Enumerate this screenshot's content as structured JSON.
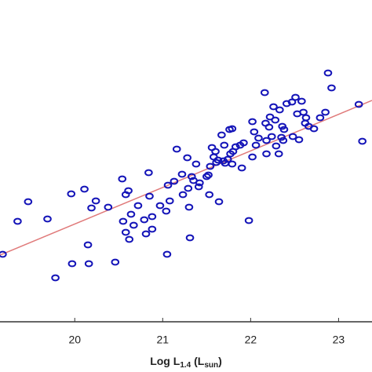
{
  "chart_data": {
    "type": "scatter",
    "xlabel_parts": [
      "Log L",
      "1.4",
      " (L",
      "sun",
      ")"
    ],
    "xlim": [
      19.15,
      23.38
    ],
    "xticks": [
      20,
      21,
      22,
      23
    ],
    "ylim": [
      0,
      410
    ],
    "x": [
      19.18,
      19.35,
      19.47,
      19.69,
      19.96,
      20.11,
      19.97,
      20.16,
      19.78,
      20.15,
      20.19,
      20.24,
      20.38,
      20.46,
      20.54,
      20.58,
      20.61,
      20.55,
      20.58,
      20.64,
      20.62,
      20.67,
      20.72,
      20.79,
      20.81,
      20.84,
      20.85,
      20.88,
      20.88,
      20.97,
      21.04,
      21.05,
      21.06,
      21.08,
      21.13,
      21.16,
      21.22,
      21.23,
      21.28,
      21.29,
      21.3,
      21.31,
      21.33,
      21.35,
      21.38,
      21.41,
      21.42,
      21.5,
      21.52,
      21.53,
      21.54,
      21.56,
      21.58,
      21.6,
      21.61,
      21.63,
      21.64,
      21.67,
      21.7,
      21.69,
      21.71,
      21.74,
      21.76,
      21.77,
      21.79,
      21.79,
      21.8,
      21.83,
      21.88,
      21.9,
      21.92,
      21.98,
      22.02,
      22.04,
      22.02,
      22.06,
      22.09,
      22.16,
      22.17,
      22.18,
      22.18,
      22.21,
      22.22,
      22.24,
      22.26,
      22.28,
      22.29,
      22.32,
      22.33,
      22.35,
      22.36,
      22.37,
      22.38,
      22.41,
      22.47,
      22.48,
      22.51,
      22.53,
      22.55,
      22.58,
      22.6,
      22.62,
      22.63,
      22.66,
      22.72,
      22.79,
      22.85,
      22.88,
      22.92,
      23.23,
      23.27
    ],
    "series": [
      {
        "color": "#1414b8",
        "values": [
          86,
          128,
          153,
          131,
          163,
          169,
          74,
          74,
          56,
          98,
          145,
          154,
          146,
          76,
          182,
          162,
          167,
          128,
          114,
          137,
          105,
          123,
          148,
          130,
          112,
          190,
          160,
          118,
          134,
          148,
          141,
          86,
          174,
          154,
          179,
          220,
          188,
          162,
          209,
          170,
          146,
          107,
          185,
          180,
          201,
          172,
          177,
          185,
          187,
          162,
          198,
          222,
          210,
          217,
          203,
          206,
          153,
          238,
          225,
          205,
          202,
          207,
          245,
          214,
          246,
          201,
          217,
          223,
          225,
          196,
          228,
          129,
          255,
          242,
          210,
          225,
          234,
          292,
          253,
          231,
          214,
          248,
          261,
          236,
          274,
          257,
          224,
          214,
          270,
          235,
          249,
          231,
          245,
          278,
          280,
          236,
          286,
          265,
          232,
          281,
          267,
          253,
          260,
          249,
          246,
          260,
          267,
          317,
          298,
          277,
          230
        ]
      }
    ],
    "fit_line": {
      "x": [
        19.15,
        23.38
      ],
      "y": [
        85,
        282
      ],
      "color": "#e07a7a"
    }
  }
}
